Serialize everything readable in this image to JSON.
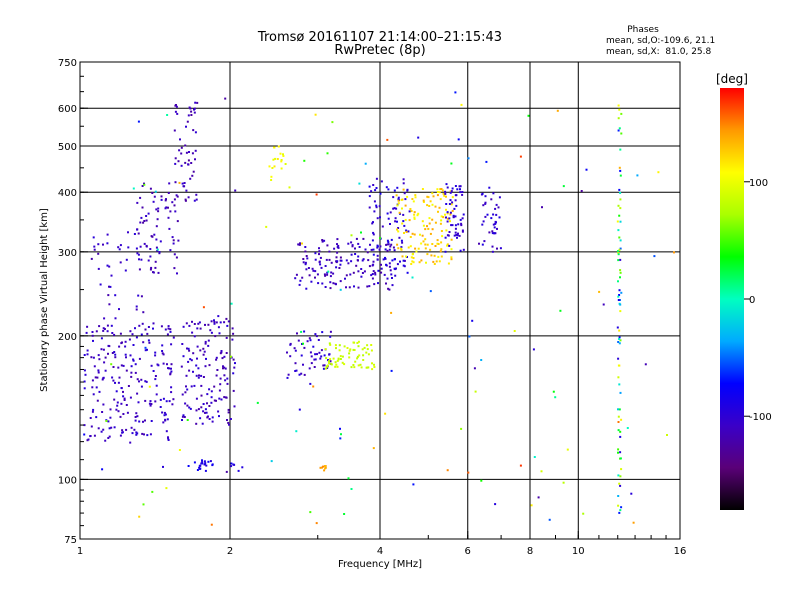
{
  "header": {
    "title": "Tromsø 20161107 21:14:00–21:15:43",
    "subtitle": "RwPretec (8p)",
    "stats_title": "Phases",
    "stats_line1": "mean, sd,O:-109.6, 21.1",
    "stats_line2": "mean, sd,X:  81.0, 25.8"
  },
  "colorbar": {
    "unit_label": "[deg]",
    "ticks": [
      {
        "value": 100,
        "label": "100"
      },
      {
        "value": 0,
        "label": "0"
      },
      {
        "value": -100,
        "label": "-100"
      }
    ],
    "range": [
      -180,
      180
    ],
    "colors": [
      "#000000",
      "#5a0078",
      "#3a00c8",
      "#0000ff",
      "#00aaff",
      "#00ffc0",
      "#00ff00",
      "#aaff00",
      "#ffff00",
      "#ff9900",
      "#ff0000"
    ]
  },
  "chart_data": {
    "type": "scatter",
    "title": "Tromsø 20161107 21:14:00–21:15:43",
    "subtitle": "RwPretec (8p)",
    "xlabel": "Frequency [MHz]",
    "ylabel": "Stationary phase Virtual Height [km]",
    "x_scale": "log",
    "y_scale": "log",
    "xlim": [
      1,
      16
    ],
    "ylim": [
      75,
      750
    ],
    "x_ticks": [
      {
        "value": 1,
        "label": "1"
      },
      {
        "value": 2,
        "label": "2"
      },
      {
        "value": 4,
        "label": "4"
      },
      {
        "value": 6,
        "label": "6"
      },
      {
        "value": 8,
        "label": "8"
      },
      {
        "value": 10,
        "label": "10"
      },
      {
        "value": 16,
        "label": "16"
      }
    ],
    "x_gridlines": [
      2,
      4,
      6,
      8,
      10
    ],
    "y_ticks": [
      {
        "value": 75,
        "label": "75"
      },
      {
        "value": 100,
        "label": "100"
      },
      {
        "value": 200,
        "label": "200"
      },
      {
        "value": 300,
        "label": "300"
      },
      {
        "value": 400,
        "label": "400"
      },
      {
        "value": 500,
        "label": "500"
      },
      {
        "value": 600,
        "label": "600"
      },
      {
        "value": 750,
        "label": "750"
      }
    ],
    "y_gridlines": [
      100,
      200,
      300,
      400,
      500,
      600
    ],
    "grid": true,
    "clusters": [
      {
        "x": [
          1.02,
          1.55
        ],
        "y": [
          120,
          215
        ],
        "phase": [
          -120,
          -95
        ],
        "n": 230
      },
      {
        "x": [
          1.3,
          1.58
        ],
        "y": [
          270,
          420
        ],
        "phase": [
          -125,
          -100
        ],
        "n": 75
      },
      {
        "x": [
          1.55,
          1.72
        ],
        "y": [
          380,
          620
        ],
        "phase": [
          -130,
          -100
        ],
        "n": 55
      },
      {
        "x": [
          1.05,
          1.35
        ],
        "y": [
          200,
          330
        ],
        "phase": [
          -120,
          -95
        ],
        "n": 45
      },
      {
        "x": [
          1.6,
          2.05
        ],
        "y": [
          130,
          220
        ],
        "phase": [
          -125,
          -95
        ],
        "n": 150
      },
      {
        "x": [
          1.65,
          1.9
        ],
        "y": [
          104,
          110
        ],
        "phase": [
          -100,
          -75
        ],
        "n": 22
      },
      {
        "x": [
          2.0,
          2.15
        ],
        "y": [
          104,
          108
        ],
        "phase": [
          -100,
          -80
        ],
        "n": 6
      },
      {
        "x": [
          2.4,
          2.6
        ],
        "y": [
          405,
          500
        ],
        "phase": [
          90,
          115
        ],
        "n": 18
      },
      {
        "x": [
          2.6,
          3.2
        ],
        "y": [
          165,
          205
        ],
        "phase": [
          -120,
          -90
        ],
        "n": 55
      },
      {
        "x": [
          3.1,
          3.9
        ],
        "y": [
          170,
          195
        ],
        "phase": [
          75,
          95
        ],
        "n": 70
      },
      {
        "x": [
          2.7,
          4.3
        ],
        "y": [
          250,
          320
        ],
        "phase": [
          -125,
          -95
        ],
        "n": 160
      },
      {
        "x": [
          3.8,
          4.6
        ],
        "y": [
          270,
          430
        ],
        "phase": [
          -110,
          -85
        ],
        "n": 90
      },
      {
        "x": [
          4.3,
          5.6
        ],
        "y": [
          280,
          410
        ],
        "phase": [
          100,
          140
        ],
        "n": 140
      },
      {
        "x": [
          5.4,
          5.9
        ],
        "y": [
          300,
          420
        ],
        "phase": [
          -110,
          -90
        ],
        "n": 60
      },
      {
        "x": [
          6.3,
          7.0
        ],
        "y": [
          300,
          410
        ],
        "phase": [
          -120,
          -90
        ],
        "n": 40
      },
      {
        "x": [
          3.0,
          3.12
        ],
        "y": [
          104,
          107
        ],
        "phase": [
          130,
          150
        ],
        "n": 8
      },
      {
        "x": [
          12.0,
          12.2
        ],
        "y": [
          85,
          610
        ],
        "phase": [
          -100,
          120
        ],
        "n": 75
      },
      {
        "x": [
          1.0,
          16.0
        ],
        "y": [
          80,
          650
        ],
        "phase": [
          -130,
          170
        ],
        "n": 120
      }
    ]
  }
}
